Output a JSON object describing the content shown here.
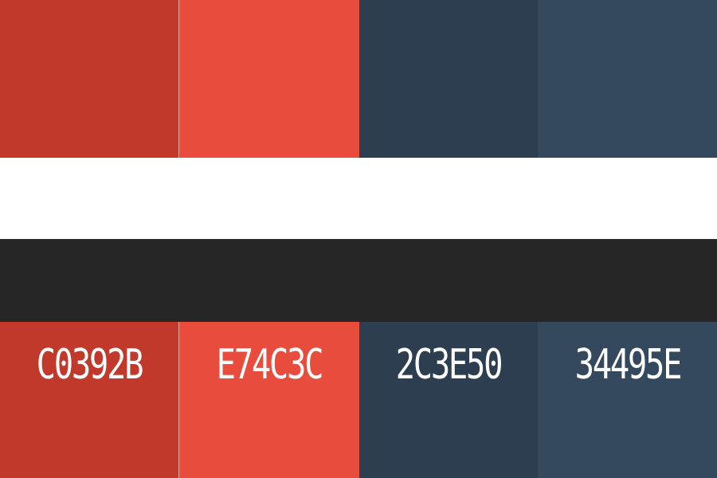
{
  "palette": {
    "swatches": [
      {
        "code": "C0392B",
        "color": "#C0392B"
      },
      {
        "code": "E74C3C",
        "color": "#E74C3C"
      },
      {
        "code": "2C3E50",
        "color": "#2C3E50"
      },
      {
        "code": "34495E",
        "color": "#34495E"
      }
    ],
    "band_light_color": "#FFFFFF",
    "band_dark_color": "#262626"
  }
}
